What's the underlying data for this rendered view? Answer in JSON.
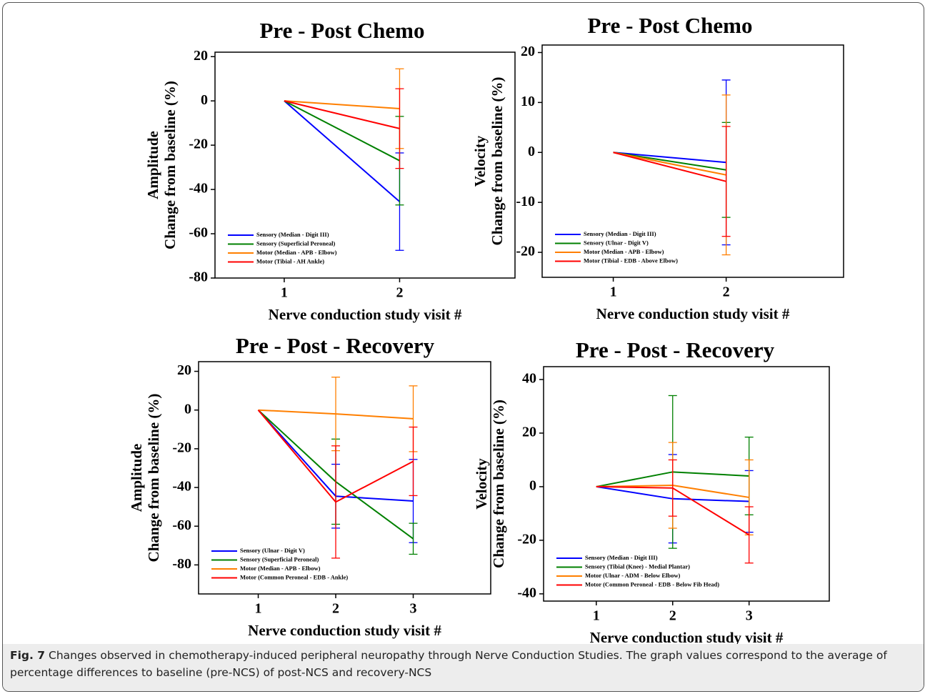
{
  "chart_data": [
    {
      "type": "line",
      "title": "Pre - Post Chemo",
      "ylabel": [
        "Amplitude",
        "Change from baseline (%)"
      ],
      "xlabel": "Nerve conduction study visit #",
      "x": [
        1,
        2
      ],
      "xlim": [
        0.4,
        3.0
      ],
      "xticks": [
        1,
        2
      ],
      "ylim": [
        -80,
        22
      ],
      "yticks": [
        -80,
        -60,
        -40,
        -20,
        0,
        20
      ],
      "legend": "lower left",
      "series": [
        {
          "name": "Sensory (Median - Digit III)",
          "color": "#0000ff",
          "values": [
            0,
            -45.5
          ],
          "errors": [
            null,
            22
          ]
        },
        {
          "name": "Sensory (Superficial Peroneal)",
          "color": "#008000",
          "values": [
            0,
            -27
          ],
          "errors": [
            null,
            20
          ]
        },
        {
          "name": "Motor (Median - APB - Elbow)",
          "color": "#ff7f00",
          "values": [
            0,
            -3.5
          ],
          "errors": [
            null,
            18
          ]
        },
        {
          "name": "Motor (Tibial - AH Ankle)",
          "color": "#ff0000",
          "values": [
            0,
            -12.5
          ],
          "errors": [
            null,
            18
          ]
        }
      ]
    },
    {
      "type": "line",
      "title": "Pre - Post Chemo",
      "ylabel": [
        "Velocity",
        "Change from baseline (%)"
      ],
      "xlabel": "Nerve conduction study visit #",
      "x": [
        1,
        2
      ],
      "xlim": [
        0.37,
        3.04
      ],
      "xticks": [
        1,
        2
      ],
      "ylim": [
        -25,
        21.5
      ],
      "yticks": [
        -20,
        -10,
        0,
        10,
        20
      ],
      "legend": "lower left",
      "series": [
        {
          "name": "Sensory (Median - Digit III)",
          "color": "#0000ff",
          "values": [
            0,
            -2
          ],
          "errors": [
            null,
            16.5
          ]
        },
        {
          "name": "Sensory (Ulnar - Digit V)",
          "color": "#008000",
          "values": [
            0,
            -3.5
          ],
          "errors": [
            null,
            9.5
          ]
        },
        {
          "name": "Motor (Median - APB - Elbow)",
          "color": "#ff7f00",
          "values": [
            0,
            -4.5
          ],
          "errors": [
            null,
            16
          ]
        },
        {
          "name": "Motor (Tibial - EDB - Above Elbow)",
          "color": "#ff0000",
          "values": [
            0,
            -5.8
          ],
          "errors": [
            null,
            11
          ]
        }
      ]
    },
    {
      "type": "line",
      "title": "Pre - Post - Recovery",
      "ylabel": [
        "Amplitude",
        "Change from baseline (%)"
      ],
      "xlabel": "Nerve conduction study visit #",
      "x": [
        1,
        2,
        3
      ],
      "xlim": [
        0.23,
        4.0
      ],
      "xticks": [
        1,
        2,
        3
      ],
      "ylim": [
        -95,
        25
      ],
      "yticks": [
        -80,
        -60,
        -40,
        -20,
        0,
        20
      ],
      "legend": "lower left",
      "series": [
        {
          "name": "Sensory (Ulnar - Digit V)",
          "color": "#0000ff",
          "values": [
            0,
            -44.5,
            -47
          ],
          "errors": [
            null,
            16.5,
            21.5
          ]
        },
        {
          "name": "Sensory (Superficial Peroneal)",
          "color": "#008000",
          "values": [
            0,
            -37,
            -66.5
          ],
          "errors": [
            null,
            22,
            8
          ]
        },
        {
          "name": "Motor (Median - APB - Elbow)",
          "color": "#ff7f00",
          "values": [
            0,
            -2,
            -4.5
          ],
          "errors": [
            null,
            19,
            17
          ]
        },
        {
          "name": "Motor (Common Peroneal - EDB - Ankle)",
          "color": "#ff0000",
          "values": [
            0,
            -47.5,
            -26.5
          ],
          "errors": [
            null,
            29,
            17.7
          ]
        }
      ]
    },
    {
      "type": "line",
      "title": "Pre - Post - Recovery",
      "ylabel": [
        "Velocity",
        "Change from baseline (%)"
      ],
      "xlabel": "Nerve conduction study visit #",
      "x": [
        1,
        2,
        3
      ],
      "xlim": [
        0.31,
        4.05
      ],
      "xticks": [
        1,
        2,
        3
      ],
      "ylim": [
        -42.7,
        44.8
      ],
      "yticks": [
        -40,
        -20,
        0,
        20,
        40
      ],
      "legend": "lower left",
      "series": [
        {
          "name": "Sensory (Median - Digit III)",
          "color": "#0000ff",
          "values": [
            0,
            -4.5,
            -5.5
          ],
          "errors": [
            null,
            16.5,
            11.5
          ]
        },
        {
          "name": "Sensory (Tibial (Knee) - Medial Plantar)",
          "color": "#008000",
          "values": [
            0,
            5.5,
            4
          ],
          "errors": [
            null,
            28.5,
            14.5
          ]
        },
        {
          "name": "Motor (Ulnar - ADM - Below Elbow)",
          "color": "#ff7f00",
          "values": [
            0,
            0.5,
            -4
          ],
          "errors": [
            null,
            16,
            14
          ]
        },
        {
          "name": "Motor (Common Peroneal - EDB - Below Fib Head)",
          "color": "#ff0000",
          "values": [
            0,
            -0.5,
            -18
          ],
          "errors": [
            null,
            10.5,
            10.5
          ]
        }
      ]
    }
  ],
  "caption": {
    "label": "Fig. 7",
    "text": "Changes observed in chemotherapy-induced peripheral neuropathy through Nerve Conduction Studies. The graph values correspond to the average of percentage differences to baseline (pre-NCS) of post-NCS and recovery-NCS"
  }
}
